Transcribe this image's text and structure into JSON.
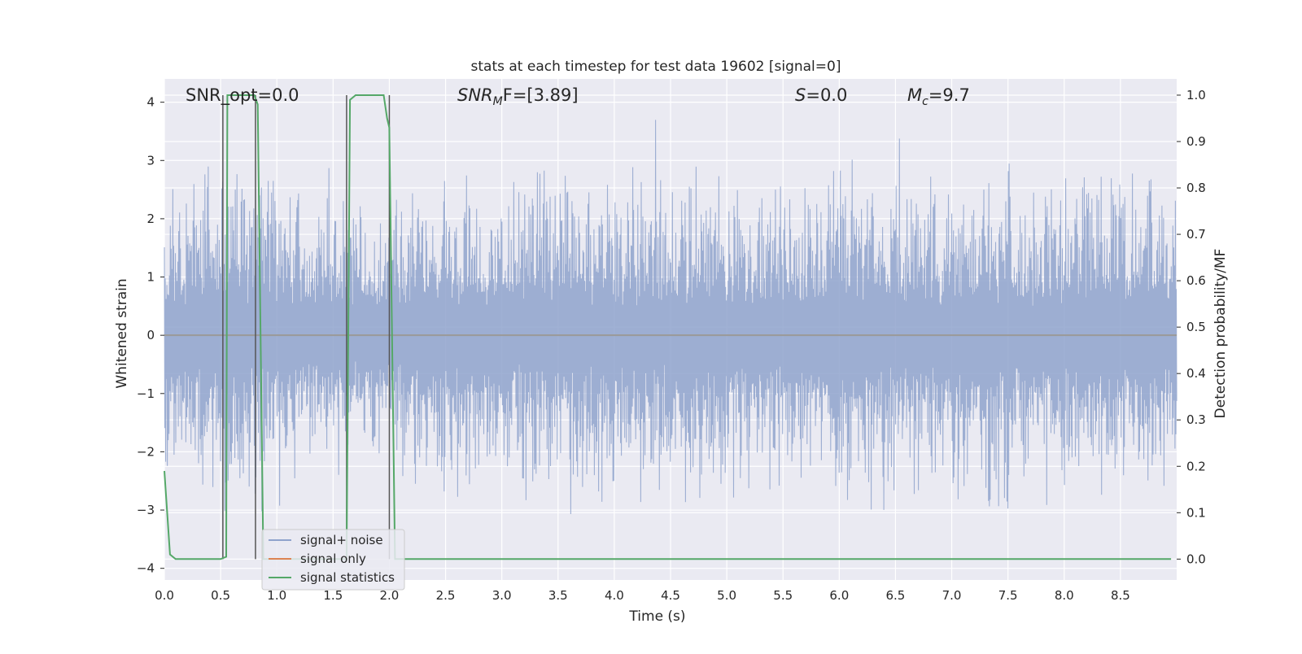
{
  "chart_data": {
    "type": "line",
    "title": "stats at each timestep for test data 19602 [signal=0]",
    "xlabel": "Time (s)",
    "ylabel": "Whitened strain",
    "y2label": "Detection probability/MF",
    "xlim": [
      0.0,
      9.0
    ],
    "ylim": [
      -4.2,
      4.4
    ],
    "y2lim": [
      -0.045,
      1.035
    ],
    "xticks": [
      "0.0",
      "0.5",
      "1.0",
      "1.5",
      "2.0",
      "2.5",
      "3.0",
      "3.5",
      "4.0",
      "4.5",
      "5.0",
      "5.5",
      "6.0",
      "6.5",
      "7.0",
      "7.5",
      "8.0",
      "8.5"
    ],
    "yticks": [
      "4",
      "3",
      "2",
      "1",
      "0",
      "−1",
      "−2",
      "−3",
      "−4"
    ],
    "y2ticks": [
      "1.0",
      "0.9",
      "0.8",
      "0.7",
      "0.6",
      "0.5",
      "0.4",
      "0.3",
      "0.2",
      "0.1",
      "0.0"
    ],
    "grid": true,
    "legend_position": "lower-left",
    "annotations": {
      "snr_opt": "SNR_opt=0.0",
      "snr_mf_main": "SNR",
      "snr_mf_sub": "M",
      "snr_mf_tail": "F=[3.89]",
      "s_main": "S",
      "s_tail": "=0.0",
      "mc_main": "M",
      "mc_sub": "c",
      "mc_tail": "=9.7"
    },
    "series": [
      {
        "name": "signal+ noise",
        "color": "#8fa3cc",
        "axis": "left",
        "description_shape": "dense noise strain, |amplitude| mostly below ~2.5, spikes to ~4",
        "peak_envelope": [
          2.6,
          2.9,
          3.2,
          2.8,
          2.4,
          2.3,
          2.2,
          2.1,
          2.5,
          2.6,
          2.7,
          2.6,
          2.5,
          2.9,
          2.8,
          2.7,
          2.6,
          2.6,
          2.6,
          2.7,
          2.6,
          2.5,
          2.5,
          2.6,
          2.8,
          2.9,
          2.7,
          2.6,
          2.7,
          2.7,
          2.8,
          2.5,
          2.6,
          2.8,
          2.9,
          2.6,
          2.5
        ]
      },
      {
        "name": "signal only",
        "color": "#dd8452",
        "axis": "left",
        "x": [
          0.0,
          9.0
        ],
        "y": [
          0.0,
          0.0
        ]
      },
      {
        "name": "signal statistics",
        "color": "#55a868",
        "axis": "right",
        "x": [
          0.0,
          0.05,
          0.1,
          0.2,
          0.5,
          0.55,
          0.56,
          0.62,
          0.75,
          0.8,
          0.83,
          0.88,
          0.9,
          1.0,
          1.5,
          1.6,
          1.62,
          1.65,
          1.7,
          1.75,
          1.95,
          1.98,
          2.0,
          2.05,
          2.1,
          8.95
        ],
        "y": [
          0.19,
          0.01,
          0.0,
          0.0,
          0.0,
          0.005,
          1.0,
          1.0,
          1.0,
          1.0,
          0.98,
          0.0,
          0.0,
          0.0,
          0.0,
          0.0,
          0.0,
          0.99,
          1.0,
          1.0,
          1.0,
          0.95,
          0.93,
          0.0,
          0.0,
          0.0
        ]
      }
    ],
    "vertical_markers": [
      0.52,
      0.81,
      1.62,
      2.0
    ]
  }
}
